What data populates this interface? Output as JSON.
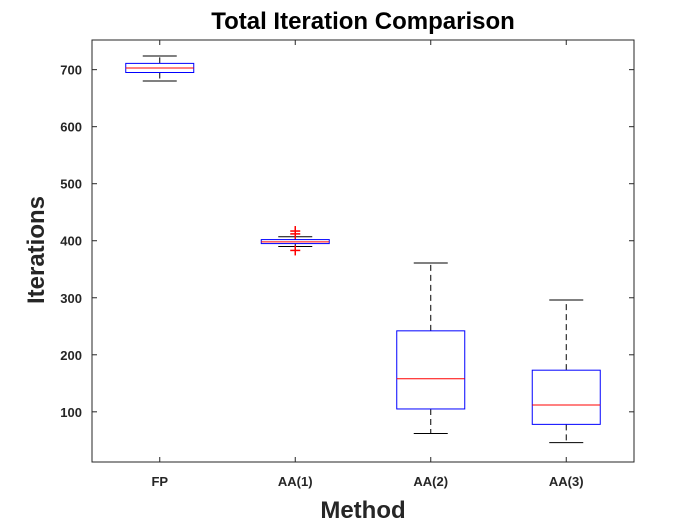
{
  "chart_data": {
    "type": "boxplot",
    "title": "Total Iteration Comparison",
    "xlabel": "Method",
    "ylabel": "Iterations",
    "ylim": [
      12,
      752
    ],
    "yticks": [
      100,
      200,
      300,
      400,
      500,
      600,
      700
    ],
    "categories": [
      "FP",
      "AA(1)",
      "AA(2)",
      "AA(3)"
    ],
    "boxes": [
      {
        "name": "FP",
        "whisker_low": 680,
        "q1": 695,
        "median": 703,
        "q3": 711,
        "whisker_high": 724,
        "outliers": []
      },
      {
        "name": "AA(1)",
        "whisker_low": 390,
        "q1": 395,
        "median": 398,
        "q3": 402,
        "whisker_high": 407,
        "outliers": [
          383,
          412,
          417
        ]
      },
      {
        "name": "AA(2)",
        "whisker_low": 62,
        "q1": 105,
        "median": 158,
        "q3": 242,
        "whisker_high": 361,
        "outliers": []
      },
      {
        "name": "AA(3)",
        "whisker_low": 46,
        "q1": 78,
        "median": 112,
        "q3": 173,
        "whisker_high": 296,
        "outliers": []
      }
    ],
    "colors": {
      "box": "#0000ff",
      "median": "#ff0000",
      "whisker": "#000000",
      "outlier": "#ff0000"
    }
  }
}
